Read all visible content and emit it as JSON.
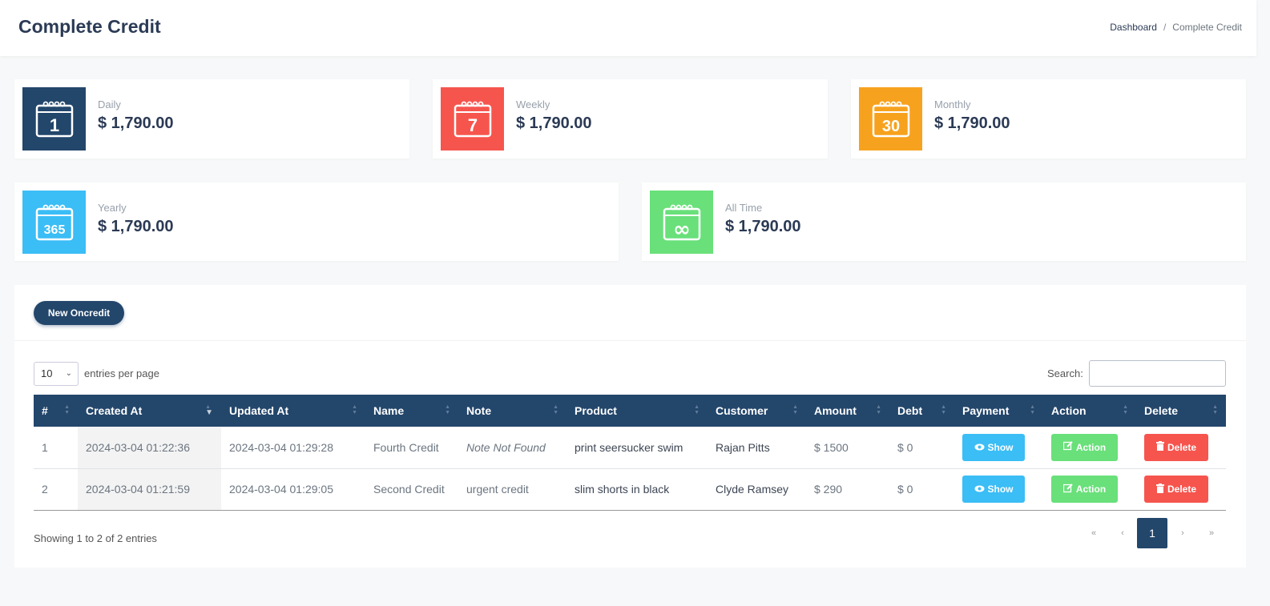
{
  "header": {
    "title": "Complete Credit",
    "breadcrumb": [
      "Dashboard",
      "Complete Credit"
    ]
  },
  "stats": [
    {
      "label": "Daily",
      "value": "$ 1,790.00",
      "icon_text": "1",
      "color": "#23466b"
    },
    {
      "label": "Weekly",
      "value": "$ 1,790.00",
      "icon_text": "7",
      "color": "#f6554e"
    },
    {
      "label": "Monthly",
      "value": "$ 1,790.00",
      "icon_text": "30",
      "color": "#f7a21e"
    },
    {
      "label": "Yearly",
      "value": "$ 1,790.00",
      "icon_text": "365",
      "color": "#3bbdf5"
    },
    {
      "label": "All Time",
      "value": "$ 1,790.00",
      "icon_text": "∞",
      "color": "#69e07a"
    }
  ],
  "toolbar": {
    "new_button": "New Oncredit"
  },
  "table_controls": {
    "per_page_value": "10",
    "per_page_label": "entries per page",
    "search_label": "Search:"
  },
  "table": {
    "columns": [
      "#",
      "Created At",
      "Updated At",
      "Name",
      "Note",
      "Product",
      "Customer",
      "Amount",
      "Debt",
      "Payment",
      "Action",
      "Delete"
    ],
    "rows": [
      {
        "num": "1",
        "created": "2024-03-04 01:22:36",
        "updated": "2024-03-04 01:29:28",
        "name": "Fourth Credit",
        "note": "Note Not Found",
        "product": "print seersucker swim",
        "customer": "Rajan Pitts",
        "amount": "$ 1500",
        "debt": "$ 0"
      },
      {
        "num": "2",
        "created": "2024-03-04 01:21:59",
        "updated": "2024-03-04 01:29:05",
        "name": "Second Credit",
        "note": "urgent credit",
        "product": "slim shorts in black",
        "customer": "Clyde Ramsey",
        "amount": "$ 290",
        "debt": "$ 0"
      }
    ],
    "row_buttons": {
      "show": "Show",
      "action": "Action",
      "delete": "Delete"
    }
  },
  "footer": {
    "showing": "Showing 1 to 2 of 2 entries",
    "pagination": {
      "first": "«",
      "prev": "‹",
      "current": "1",
      "next": "›",
      "last": "»"
    }
  }
}
